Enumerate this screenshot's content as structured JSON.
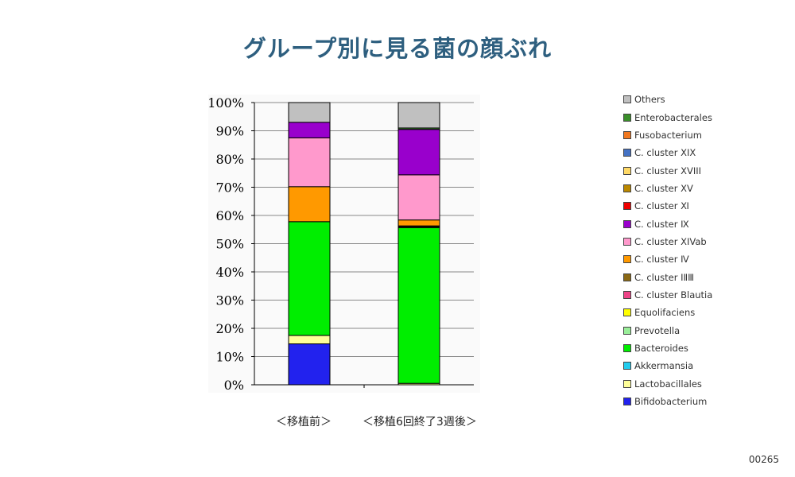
{
  "title": "グループ別に見る菌の顔ぶれ",
  "page_number": "00265",
  "chart_data": {
    "type": "bar",
    "stacked": true,
    "categories": [
      "＜移植前＞",
      "＜移植6回終了3週後＞"
    ],
    "yticks": [
      "0%",
      "10%",
      "20%",
      "30%",
      "40%",
      "50%",
      "60%",
      "70%",
      "80%",
      "90%",
      "100%"
    ],
    "ylim": [
      0,
      100
    ],
    "grid": true,
    "legend_position": "right",
    "series": [
      {
        "name": "Bifidobacterium",
        "color": "#2222ee",
        "values": [
          14.5,
          0.0
        ]
      },
      {
        "name": "Lactobacillales",
        "color": "#ffff99",
        "values": [
          3.0,
          0.5
        ]
      },
      {
        "name": "Akkermansia",
        "color": "#22ccee",
        "values": [
          0.0,
          0.0
        ]
      },
      {
        "name": "Bacteroides",
        "color": "#00ee00",
        "values": [
          40.3,
          55.2
        ]
      },
      {
        "name": "Prevotella",
        "color": "#99ee99",
        "values": [
          0.0,
          0.0
        ]
      },
      {
        "name": "Equolifaciens",
        "color": "#ffff00",
        "values": [
          0.0,
          0.3
        ]
      },
      {
        "name": "C. cluster Blautia",
        "color": "#ee4488",
        "values": [
          0.0,
          0.0
        ]
      },
      {
        "name": "C. cluster ⅠⅡⅢ",
        "color": "#8b6914",
        "values": [
          0.0,
          0.3
        ]
      },
      {
        "name": "C. cluster Ⅳ",
        "color": "#ff9900",
        "values": [
          12.4,
          2.1
        ]
      },
      {
        "name": "C. cluster XIVab",
        "color": "#ff99cc",
        "values": [
          17.3,
          16.0
        ]
      },
      {
        "name": "C. cluster Ⅸ",
        "color": "#9900cc",
        "values": [
          5.5,
          16.1
        ]
      },
      {
        "name": "C. cluster Ⅺ",
        "color": "#ee0000",
        "values": [
          0.0,
          0.0
        ]
      },
      {
        "name": "C. cluster XV",
        "color": "#bb8800",
        "values": [
          0.0,
          0.0
        ]
      },
      {
        "name": "C. cluster XVIII",
        "color": "#ffd966",
        "values": [
          0.0,
          0.0
        ]
      },
      {
        "name": "C. cluster XIX",
        "color": "#4472c4",
        "values": [
          0.0,
          0.0
        ]
      },
      {
        "name": "Fusobacterium",
        "color": "#f07820",
        "values": [
          0.0,
          0.0
        ]
      },
      {
        "name": "Enterobacterales",
        "color": "#3a8f2a",
        "values": [
          0.0,
          0.5
        ]
      },
      {
        "name": "Others",
        "color": "#c0c0c0",
        "values": [
          7.0,
          9.0
        ]
      }
    ]
  }
}
